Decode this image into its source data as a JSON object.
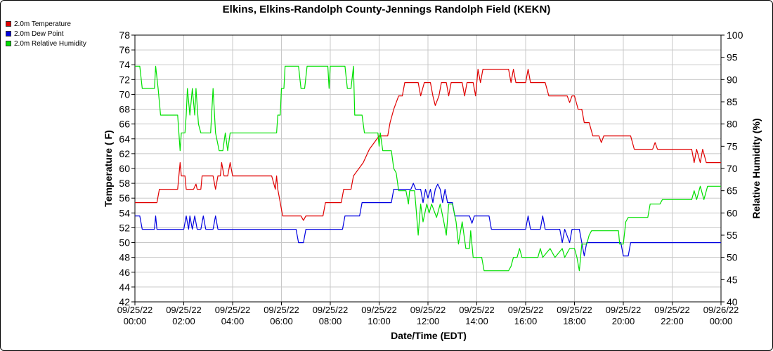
{
  "chart_data": {
    "type": "line",
    "title": "Elkins, Elkins-Randolph County-Jennings Randolph Field (KEKN)",
    "xlabel": "Date/Time (EDT)",
    "ylabel_left": "Temperature ( F)",
    "ylabel_right": "Relative Humidity (%)",
    "grid": true,
    "legend_position": "top-left",
    "x_range_hours": [
      0,
      24
    ],
    "x_ticks": [
      {
        "date": "09/25/22",
        "time": "00:00"
      },
      {
        "date": "09/25/22",
        "time": "02:00"
      },
      {
        "date": "09/25/22",
        "time": "04:00"
      },
      {
        "date": "09/25/22",
        "time": "06:00"
      },
      {
        "date": "09/25/22",
        "time": "08:00"
      },
      {
        "date": "09/25/22",
        "time": "10:00"
      },
      {
        "date": "09/25/22",
        "time": "12:00"
      },
      {
        "date": "09/25/22",
        "time": "14:00"
      },
      {
        "date": "09/25/22",
        "time": "16:00"
      },
      {
        "date": "09/25/22",
        "time": "18:00"
      },
      {
        "date": "09/25/22",
        "time": "20:00"
      },
      {
        "date": "09/25/22",
        "time": "22:00"
      },
      {
        "date": "09/26/22",
        "time": "00:00"
      }
    ],
    "y_left": {
      "min": 42,
      "max": 78,
      "ticks": [
        42,
        44,
        46,
        48,
        50,
        52,
        54,
        56,
        58,
        60,
        62,
        64,
        66,
        68,
        70,
        72,
        74,
        76,
        78
      ]
    },
    "y_right": {
      "min": 40,
      "max": 100,
      "ticks": [
        40,
        45,
        50,
        55,
        60,
        65,
        70,
        75,
        80,
        85,
        90,
        95,
        100
      ]
    },
    "series": [
      {
        "name": "2.0m Temperature",
        "color": "#e00000",
        "axis": "left",
        "points": [
          [
            0,
            55.4
          ],
          [
            0.9,
            55.4
          ],
          [
            1.0,
            57.2
          ],
          [
            1.75,
            57.2
          ],
          [
            1.85,
            60.8
          ],
          [
            1.9,
            59
          ],
          [
            2.05,
            59
          ],
          [
            2.1,
            57.2
          ],
          [
            2.4,
            57.2
          ],
          [
            2.5,
            57.9
          ],
          [
            2.55,
            57.2
          ],
          [
            2.7,
            57.2
          ],
          [
            2.75,
            59
          ],
          [
            3.2,
            59
          ],
          [
            3.3,
            57.2
          ],
          [
            3.4,
            59
          ],
          [
            3.5,
            59
          ],
          [
            3.55,
            60.8
          ],
          [
            3.65,
            59
          ],
          [
            3.8,
            59
          ],
          [
            3.9,
            60.8
          ],
          [
            4.0,
            59
          ],
          [
            5.6,
            59
          ],
          [
            5.75,
            57.2
          ],
          [
            5.8,
            59
          ],
          [
            5.85,
            57.2
          ],
          [
            5.95,
            55.4
          ],
          [
            6.05,
            53.6
          ],
          [
            6.8,
            53.6
          ],
          [
            6.9,
            53
          ],
          [
            7.0,
            53.6
          ],
          [
            7.7,
            53.6
          ],
          [
            7.8,
            55.4
          ],
          [
            8.45,
            55.4
          ],
          [
            8.55,
            57.2
          ],
          [
            8.85,
            57.2
          ],
          [
            8.95,
            59
          ],
          [
            9.35,
            60.8
          ],
          [
            9.6,
            62.6
          ],
          [
            10.0,
            64.4
          ],
          [
            10.35,
            64.4
          ],
          [
            10.45,
            66.2
          ],
          [
            10.6,
            68
          ],
          [
            10.8,
            69.8
          ],
          [
            10.95,
            69.8
          ],
          [
            11.05,
            71.6
          ],
          [
            11.6,
            71.6
          ],
          [
            11.7,
            69.8
          ],
          [
            11.85,
            71.6
          ],
          [
            12.1,
            71.6
          ],
          [
            12.2,
            69.8
          ],
          [
            12.3,
            68.5
          ],
          [
            12.45,
            69.8
          ],
          [
            12.55,
            71.6
          ],
          [
            12.75,
            71.6
          ],
          [
            12.85,
            69.8
          ],
          [
            12.95,
            71.6
          ],
          [
            13.4,
            71.6
          ],
          [
            13.5,
            69.8
          ],
          [
            13.6,
            71.6
          ],
          [
            13.85,
            71.6
          ],
          [
            13.95,
            69.8
          ],
          [
            14.05,
            73.4
          ],
          [
            14.15,
            71.6
          ],
          [
            14.25,
            73.4
          ],
          [
            15.3,
            73.4
          ],
          [
            15.4,
            71.6
          ],
          [
            15.5,
            73.4
          ],
          [
            15.6,
            71.6
          ],
          [
            16.0,
            71.6
          ],
          [
            16.1,
            73.4
          ],
          [
            16.2,
            71.6
          ],
          [
            16.8,
            71.6
          ],
          [
            16.95,
            69.8
          ],
          [
            17.7,
            69.8
          ],
          [
            17.8,
            68.9
          ],
          [
            17.9,
            69.8
          ],
          [
            18.0,
            69.8
          ],
          [
            18.15,
            68
          ],
          [
            18.3,
            68
          ],
          [
            18.4,
            66.2
          ],
          [
            18.6,
            66.2
          ],
          [
            18.75,
            64.4
          ],
          [
            19.0,
            64.4
          ],
          [
            19.1,
            63.5
          ],
          [
            19.2,
            64.4
          ],
          [
            20.3,
            64.4
          ],
          [
            20.45,
            62.6
          ],
          [
            21.2,
            62.6
          ],
          [
            21.3,
            63.5
          ],
          [
            21.4,
            62.6
          ],
          [
            22.8,
            62.6
          ],
          [
            22.9,
            60.8
          ],
          [
            23.0,
            62.6
          ],
          [
            23.15,
            60.8
          ],
          [
            23.25,
            62.6
          ],
          [
            23.4,
            60.8
          ],
          [
            24.0,
            60.8
          ]
        ]
      },
      {
        "name": "2.0m Dew Point",
        "color": "#0000e0",
        "axis": "left",
        "points": [
          [
            0,
            53.6
          ],
          [
            0.2,
            53.6
          ],
          [
            0.3,
            51.8
          ],
          [
            0.8,
            51.8
          ],
          [
            0.85,
            53.6
          ],
          [
            0.9,
            51.8
          ],
          [
            2.0,
            51.8
          ],
          [
            2.1,
            53.6
          ],
          [
            2.2,
            51.8
          ],
          [
            2.25,
            53.6
          ],
          [
            2.35,
            51.8
          ],
          [
            2.45,
            53.6
          ],
          [
            2.55,
            51.8
          ],
          [
            2.7,
            51.8
          ],
          [
            2.8,
            53.6
          ],
          [
            2.9,
            51.8
          ],
          [
            3.2,
            51.8
          ],
          [
            3.3,
            53.6
          ],
          [
            3.4,
            51.8
          ],
          [
            5.9,
            51.8
          ],
          [
            6.0,
            51.8
          ],
          [
            6.6,
            51.8
          ],
          [
            6.7,
            50
          ],
          [
            6.9,
            50
          ],
          [
            7.0,
            51.8
          ],
          [
            8.5,
            51.8
          ],
          [
            8.6,
            53.6
          ],
          [
            9.2,
            53.6
          ],
          [
            9.3,
            55.4
          ],
          [
            10.5,
            55.4
          ],
          [
            10.6,
            57.2
          ],
          [
            11.3,
            57.2
          ],
          [
            11.4,
            58
          ],
          [
            11.5,
            57.2
          ],
          [
            11.7,
            57.2
          ],
          [
            11.8,
            55.4
          ],
          [
            11.9,
            57.2
          ],
          [
            12.0,
            56
          ],
          [
            12.1,
            57.2
          ],
          [
            12.2,
            55.4
          ],
          [
            12.3,
            57.2
          ],
          [
            12.4,
            57.9
          ],
          [
            12.5,
            57.2
          ],
          [
            12.6,
            55.4
          ],
          [
            12.7,
            57.2
          ],
          [
            12.8,
            55.4
          ],
          [
            13.0,
            55.4
          ],
          [
            13.1,
            53.6
          ],
          [
            13.7,
            53.6
          ],
          [
            13.8,
            52.6
          ],
          [
            13.9,
            53.6
          ],
          [
            14.5,
            53.6
          ],
          [
            14.6,
            51.8
          ],
          [
            15.7,
            51.8
          ],
          [
            15.8,
            51.8
          ],
          [
            16.0,
            51.8
          ],
          [
            16.1,
            53.6
          ],
          [
            16.2,
            51.8
          ],
          [
            16.6,
            51.8
          ],
          [
            16.7,
            53.6
          ],
          [
            16.8,
            51.8
          ],
          [
            17.4,
            51.8
          ],
          [
            17.5,
            50
          ],
          [
            17.6,
            51.8
          ],
          [
            17.8,
            50
          ],
          [
            17.9,
            51.8
          ],
          [
            18.2,
            51.8
          ],
          [
            18.3,
            50
          ],
          [
            18.4,
            48.2
          ],
          [
            18.5,
            50
          ],
          [
            19.9,
            50
          ],
          [
            20.0,
            48.2
          ],
          [
            20.2,
            48.2
          ],
          [
            20.3,
            50
          ],
          [
            24,
            50
          ]
        ]
      },
      {
        "name": "2.0m Relative Humidity",
        "color": "#00e000",
        "axis": "right",
        "points": [
          [
            0,
            93
          ],
          [
            0.2,
            93
          ],
          [
            0.3,
            88
          ],
          [
            0.8,
            88
          ],
          [
            0.85,
            93
          ],
          [
            0.95,
            88
          ],
          [
            1.05,
            82
          ],
          [
            1.75,
            82
          ],
          [
            1.85,
            74
          ],
          [
            1.9,
            78
          ],
          [
            2.05,
            78
          ],
          [
            2.1,
            82
          ],
          [
            2.15,
            88
          ],
          [
            2.25,
            82
          ],
          [
            2.35,
            88
          ],
          [
            2.45,
            82
          ],
          [
            2.5,
            88
          ],
          [
            2.6,
            80
          ],
          [
            2.7,
            78
          ],
          [
            3.1,
            78
          ],
          [
            3.2,
            88
          ],
          [
            3.3,
            78
          ],
          [
            3.45,
            74
          ],
          [
            3.6,
            74
          ],
          [
            3.7,
            78
          ],
          [
            3.8,
            74
          ],
          [
            3.9,
            78
          ],
          [
            5.8,
            78
          ],
          [
            5.85,
            82
          ],
          [
            5.95,
            82
          ],
          [
            6.0,
            88
          ],
          [
            6.1,
            88
          ],
          [
            6.15,
            93
          ],
          [
            6.7,
            93
          ],
          [
            6.8,
            88
          ],
          [
            6.95,
            88
          ],
          [
            7.05,
            93
          ],
          [
            7.9,
            93
          ],
          [
            7.95,
            88
          ],
          [
            8.0,
            93
          ],
          [
            8.6,
            93
          ],
          [
            8.7,
            88
          ],
          [
            8.85,
            88
          ],
          [
            8.95,
            93
          ],
          [
            9.0,
            82
          ],
          [
            9.3,
            82
          ],
          [
            9.4,
            78
          ],
          [
            9.95,
            78
          ],
          [
            10.0,
            75
          ],
          [
            10.05,
            78
          ],
          [
            10.15,
            74
          ],
          [
            10.5,
            74
          ],
          [
            10.6,
            70
          ],
          [
            10.7,
            69
          ],
          [
            10.8,
            65
          ],
          [
            11.1,
            65
          ],
          [
            11.2,
            62
          ],
          [
            11.25,
            65
          ],
          [
            11.45,
            65
          ],
          [
            11.5,
            62
          ],
          [
            11.6,
            55
          ],
          [
            11.7,
            62
          ],
          [
            11.8,
            58
          ],
          [
            11.95,
            62
          ],
          [
            12.05,
            60
          ],
          [
            12.15,
            62
          ],
          [
            12.35,
            59
          ],
          [
            12.5,
            62
          ],
          [
            12.65,
            58
          ],
          [
            12.75,
            55
          ],
          [
            12.85,
            62
          ],
          [
            13.0,
            62
          ],
          [
            13.15,
            58
          ],
          [
            13.25,
            53
          ],
          [
            13.4,
            58
          ],
          [
            13.55,
            52
          ],
          [
            13.7,
            52
          ],
          [
            13.75,
            56
          ],
          [
            13.85,
            50
          ],
          [
            14.2,
            50
          ],
          [
            14.3,
            47
          ],
          [
            15.3,
            47
          ],
          [
            15.4,
            48
          ],
          [
            15.5,
            50
          ],
          [
            15.65,
            50
          ],
          [
            15.75,
            52
          ],
          [
            15.85,
            50
          ],
          [
            16.5,
            50
          ],
          [
            16.6,
            52
          ],
          [
            16.7,
            50
          ],
          [
            17.0,
            52
          ],
          [
            17.2,
            50
          ],
          [
            17.5,
            52
          ],
          [
            17.6,
            50
          ],
          [
            17.8,
            52
          ],
          [
            18.0,
            52
          ],
          [
            18.1,
            50
          ],
          [
            18.2,
            47
          ],
          [
            18.3,
            53
          ],
          [
            18.5,
            53
          ],
          [
            18.6,
            55
          ],
          [
            18.7,
            56
          ],
          [
            19.8,
            56
          ],
          [
            19.85,
            53
          ],
          [
            20.0,
            53
          ],
          [
            20.1,
            58
          ],
          [
            20.2,
            59
          ],
          [
            21.0,
            59
          ],
          [
            21.1,
            62
          ],
          [
            21.5,
            62
          ],
          [
            21.6,
            63
          ],
          [
            22.8,
            63
          ],
          [
            22.9,
            65
          ],
          [
            23.0,
            63
          ],
          [
            23.15,
            66
          ],
          [
            23.3,
            63
          ],
          [
            23.45,
            66
          ],
          [
            24,
            66
          ]
        ]
      }
    ]
  }
}
